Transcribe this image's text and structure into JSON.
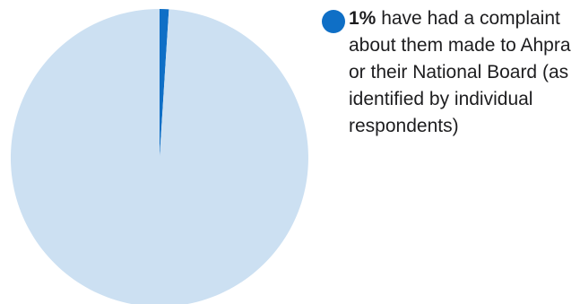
{
  "chart_data": {
    "type": "pie",
    "slices": [
      {
        "name": "have had a complaint about them made to Ahpra or their National Board (as identified by individual respondents)",
        "value": 1,
        "color": "#0f6fc6"
      },
      {
        "name": "",
        "value": 99,
        "color": "#cce0f2"
      }
    ]
  },
  "legend": {
    "value_label": "1%",
    "text": "have had a complaint about them made to Ahpra or their National Board (as identified by individual respondents)"
  }
}
